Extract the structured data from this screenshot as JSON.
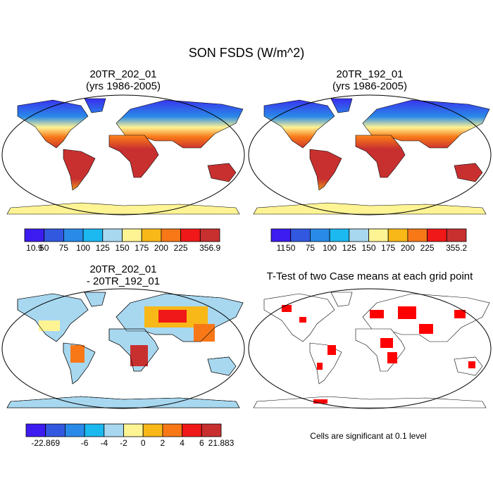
{
  "title": "SON FSDS (W/m^2)",
  "panels": [
    {
      "title": [
        "20TR_202_01",
        "(yrs 1986-2005)"
      ],
      "colorbar": {
        "colors": [
          "#3c1cf0",
          "#3358e0",
          "#2a8ae8",
          "#1cb8f0",
          "#a8d8f0",
          "#fff494",
          "#f8b818",
          "#f87818",
          "#f01818",
          "#c83030"
        ],
        "labels": [
          10.9,
          50,
          75,
          100,
          125,
          150,
          175,
          200,
          225,
          356.9
        ]
      }
    },
    {
      "title": [
        "20TR_192_01",
        "(yrs 1986-2005)"
      ],
      "colorbar": {
        "colors": [
          "#3c1cf0",
          "#3358e0",
          "#2a8ae8",
          "#1cb8f0",
          "#a8d8f0",
          "#fff494",
          "#f8b818",
          "#f87818",
          "#f01818",
          "#c83030"
        ],
        "labels": [
          11,
          50,
          75,
          100,
          125,
          150,
          175,
          200,
          225,
          355.2
        ]
      }
    },
    {
      "title": [
        "20TR_202_01",
        "- 20TR_192_01"
      ],
      "colorbar": {
        "colors": [
          "#3c1cf0",
          "#3358e0",
          "#2a8ae8",
          "#1cb8f0",
          "#a8d8f0",
          "#fff494",
          "#f8b818",
          "#f87818",
          "#f01818",
          "#c83030"
        ],
        "labels": [
          -22.869,
          -6,
          -4,
          -2,
          0,
          2,
          4,
          6,
          21.883
        ]
      }
    },
    {
      "title": [
        "T-Test of two Case means at each grid point"
      ],
      "note": "Cells are significant at 0.1 level"
    }
  ]
}
